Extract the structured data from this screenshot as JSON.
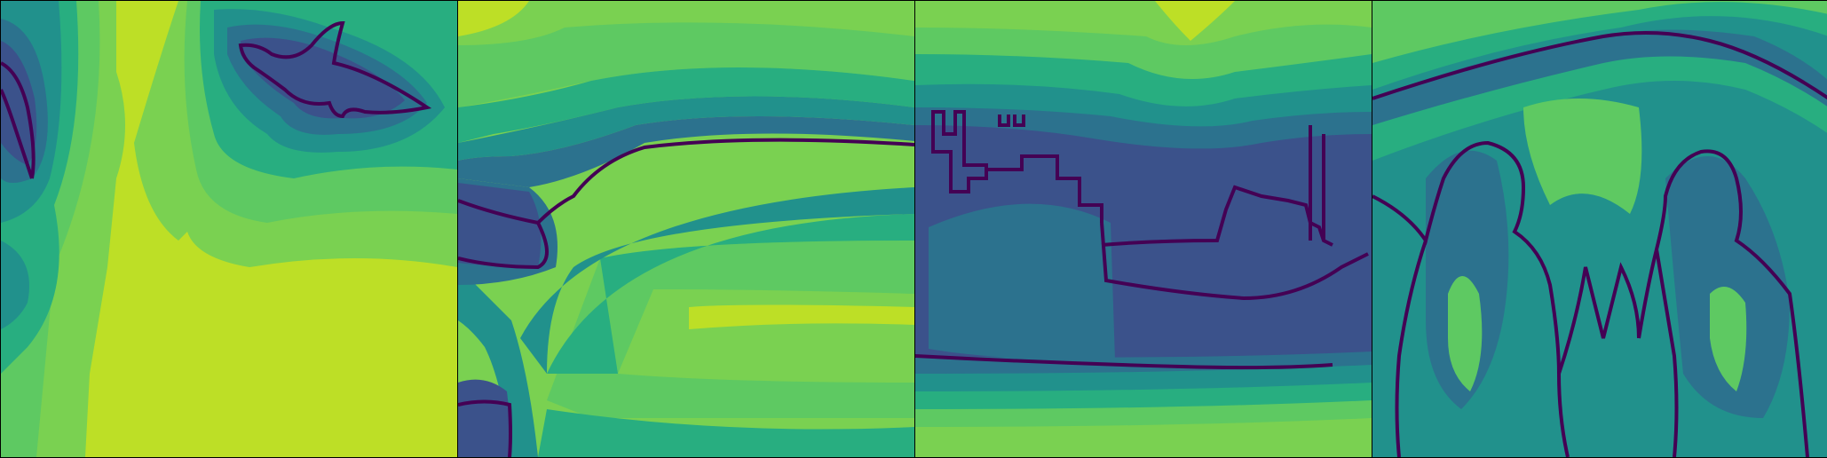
{
  "figure": {
    "panel_count": 4,
    "colormap_name": "viridis",
    "palette": {
      "level0": "#440154",
      "level1": "#3b528b",
      "level2": "#2c728e",
      "level3": "#21918c",
      "level4": "#28ae80",
      "level5": "#5ec962",
      "level6": "#7ad151",
      "level7": "#bddf26"
    }
  },
  "panels": [
    {
      "id": "panel-1",
      "subject": "bird-and-branch-contours"
    },
    {
      "id": "panel-2",
      "subject": "horizon-contour"
    },
    {
      "id": "panel-3",
      "subject": "ship-and-building-contours"
    },
    {
      "id": "panel-4",
      "subject": "two-people-contours"
    }
  ]
}
